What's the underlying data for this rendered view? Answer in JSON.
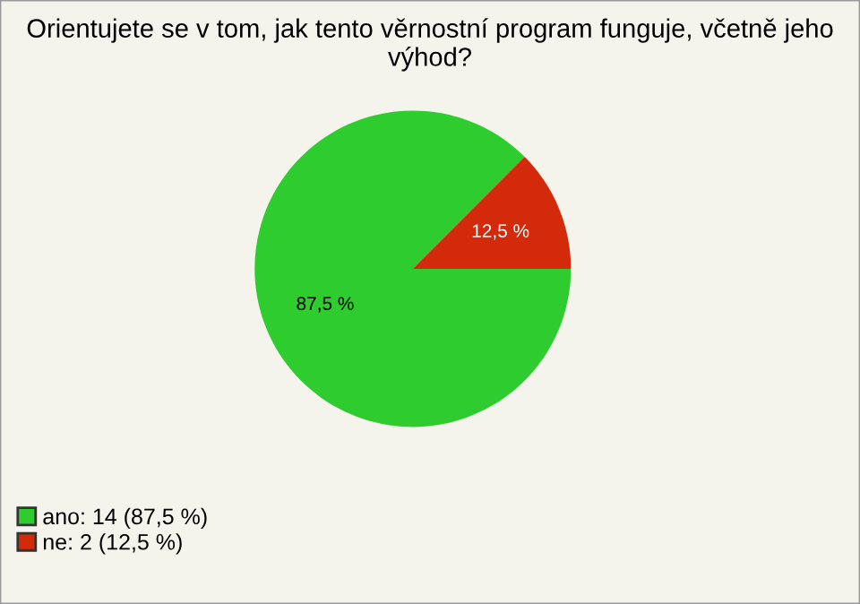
{
  "chart_data": {
    "type": "pie",
    "title": "Orientujete se v tom, jak tento věrnostní program funguje, včetně jeho výhod?",
    "categories": [
      "ano: 14 (87,5 %)",
      "ne: 2 (12,5 %)"
    ],
    "values": [
      87.5,
      12.5
    ],
    "colors": [
      "#2ecc2e",
      "#d42a0c"
    ],
    "value_labels": [
      "87,5 %",
      "12,5 %"
    ],
    "legend": "bottom left"
  }
}
